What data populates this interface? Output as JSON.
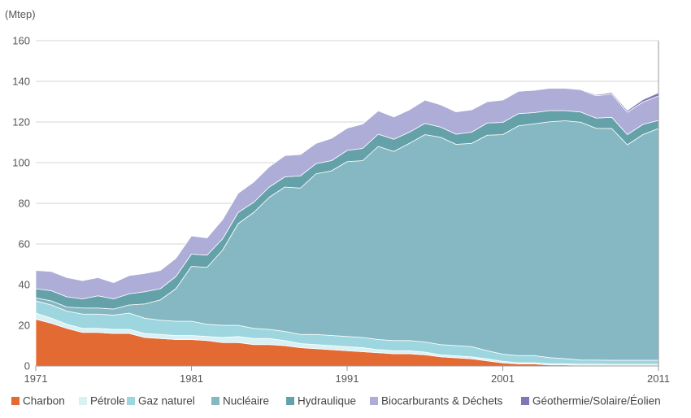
{
  "chart_data": {
    "type": "area",
    "stacked": true,
    "unit_label": "(Mtep)",
    "ylim": [
      0,
      160
    ],
    "yticks": [
      0,
      20,
      40,
      60,
      80,
      100,
      120,
      140,
      160
    ],
    "xlim": [
      1971,
      2011
    ],
    "xticks": [
      1971,
      1981,
      1991,
      2001,
      2011
    ],
    "grid": "horizontal",
    "legend_position": "bottom",
    "x": [
      1971,
      1972,
      1973,
      1974,
      1975,
      1976,
      1977,
      1978,
      1979,
      1980,
      1981,
      1982,
      1983,
      1984,
      1985,
      1986,
      1987,
      1988,
      1989,
      1990,
      1991,
      1992,
      1993,
      1994,
      1995,
      1996,
      1997,
      1998,
      1999,
      2000,
      2001,
      2002,
      2003,
      2004,
      2005,
      2006,
      2007,
      2008,
      2009,
      2010,
      2011
    ],
    "series": [
      {
        "name": "Charbon",
        "color": "#e36b33",
        "values": [
          23,
          21,
          18.5,
          16.5,
          16.5,
          16,
          16,
          14,
          13.5,
          13,
          13,
          12.5,
          11.5,
          11.5,
          10.5,
          10.5,
          10,
          9,
          8.5,
          8,
          7.5,
          7,
          6.5,
          6,
          6,
          5.5,
          4.5,
          4,
          3.5,
          2.5,
          1.5,
          1,
          1,
          0.5,
          0.5,
          0.3,
          0.3,
          0.3,
          0.3,
          0.3,
          0.3
        ]
      },
      {
        "name": "Pétrole",
        "color": "#d8f1f5",
        "values": [
          3,
          2.5,
          2,
          2,
          2,
          2,
          2,
          2,
          2,
          2,
          2,
          2,
          2.5,
          3,
          3,
          3,
          2.5,
          2,
          2,
          2,
          2,
          2,
          1.5,
          1.5,
          1.5,
          1.3,
          1,
          1,
          1,
          1,
          0.8,
          0.6,
          0.6,
          0.6,
          0.6,
          0.6,
          0.6,
          0.5,
          0.5,
          0.5,
          0.5
        ]
      },
      {
        "name": "Gaz naturel",
        "color": "#9ed6e0",
        "values": [
          6,
          6.5,
          6.5,
          7,
          7,
          7,
          8,
          7.5,
          7,
          7,
          7,
          6,
          6,
          5.5,
          5,
          4.5,
          4.5,
          4.5,
          5,
          5,
          5,
          5,
          5,
          5,
          5,
          5,
          5,
          5,
          5,
          4,
          3.5,
          3.5,
          3.5,
          3,
          2.5,
          2,
          2,
          2,
          2,
          2,
          2
        ]
      },
      {
        "name": "Nucléaire",
        "color": "#86b8c3",
        "values": [
          1.5,
          2,
          2,
          3,
          3,
          3,
          4,
          7,
          10,
          16,
          27,
          28,
          37,
          50,
          57,
          65,
          71,
          72,
          79,
          81,
          86,
          87,
          95,
          93,
          97,
          102,
          102,
          99,
          100,
          106,
          108,
          113,
          114,
          116,
          117,
          117,
          114,
          114,
          106,
          111,
          114
        ]
      },
      {
        "name": "Hydraulique",
        "color": "#64a1a8",
        "values": [
          4.5,
          5,
          5,
          4.5,
          6,
          5,
          5.5,
          6,
          5.5,
          6,
          6,
          6,
          5.5,
          5.5,
          5,
          5,
          5,
          6,
          5,
          5,
          5.5,
          6,
          6,
          6,
          5.5,
          5.5,
          5,
          5,
          5.5,
          6,
          6,
          6,
          5.5,
          5.5,
          5,
          5,
          5,
          5.5,
          5,
          5,
          4
        ]
      },
      {
        "name": "Biocarburants & Déchets",
        "color": "#adadd8",
        "values": [
          9,
          9.5,
          9.5,
          9,
          9,
          8,
          9,
          9,
          9,
          9,
          9,
          8.5,
          9.5,
          9.5,
          10,
          10,
          10.5,
          10.5,
          10,
          11,
          11,
          12,
          11.5,
          11,
          11,
          11.5,
          11,
          11,
          11,
          10.5,
          11,
          11,
          11,
          11,
          11,
          11,
          11,
          11.5,
          11,
          11,
          12
        ]
      },
      {
        "name": "Géothermie/Solaire/Éolien",
        "color": "#7f77b6",
        "values": [
          0,
          0,
          0,
          0,
          0,
          0,
          0,
          0,
          0,
          0,
          0,
          0,
          0,
          0,
          0,
          0,
          0,
          0,
          0,
          0,
          0,
          0,
          0,
          0,
          0,
          0,
          0,
          0,
          0,
          0,
          0,
          0,
          0,
          0,
          0.2,
          0.3,
          0.5,
          0.7,
          0.9,
          1.2,
          1.6
        ]
      }
    ]
  }
}
